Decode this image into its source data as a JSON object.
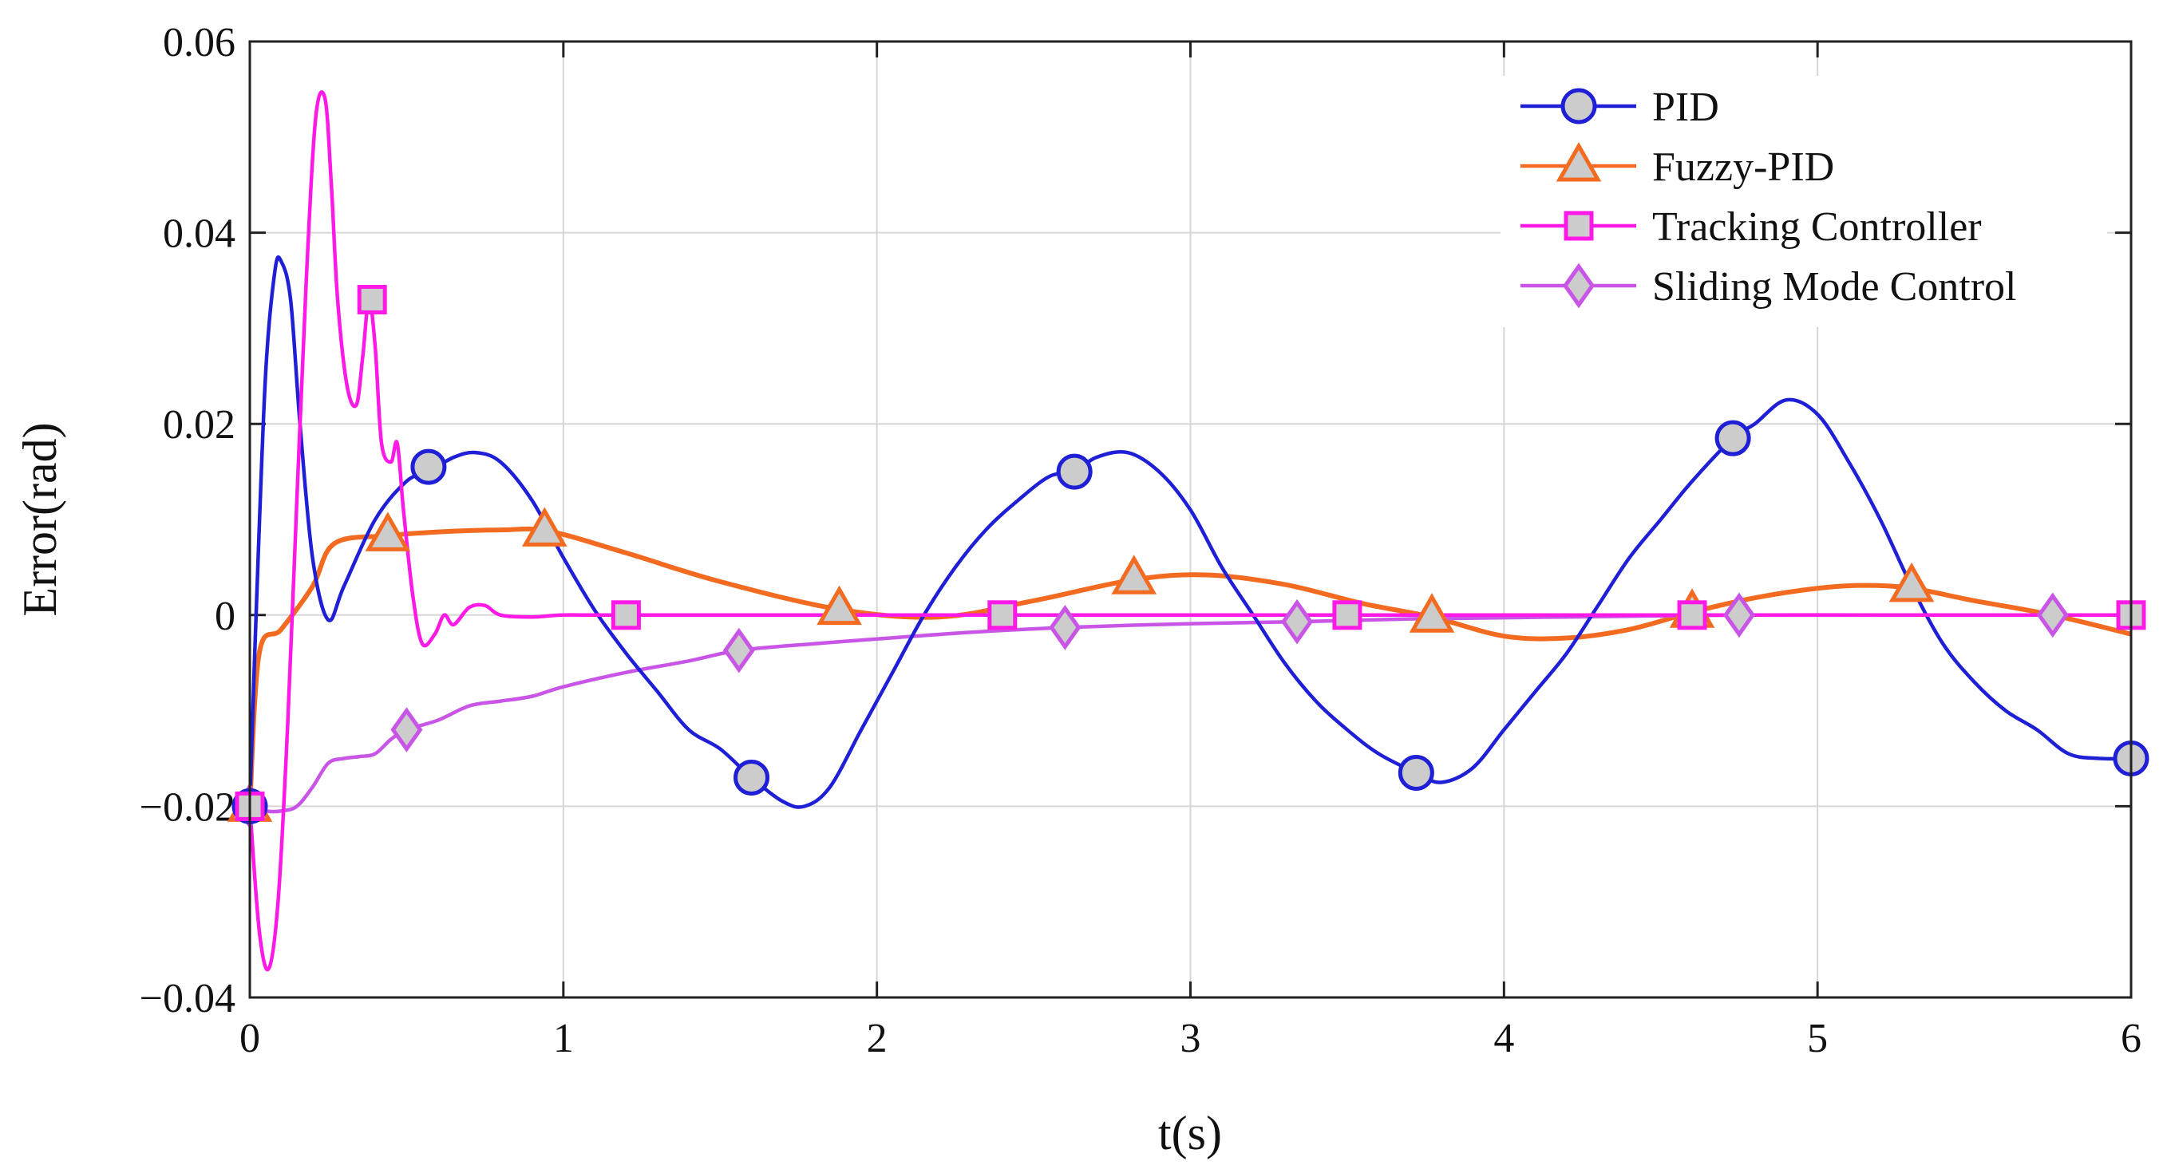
{
  "chart_data": {
    "type": "line",
    "title": "",
    "xlabel": "t(s)",
    "ylabel": "Error(rad)",
    "xlim": [
      0,
      6
    ],
    "ylim": [
      -0.04,
      0.06
    ],
    "xticks": [
      0,
      1,
      2,
      3,
      4,
      5,
      6
    ],
    "yticks": [
      -0.04,
      -0.02,
      0,
      0.02,
      0.04,
      0.06
    ],
    "xtick_labels": [
      "0",
      "1",
      "2",
      "3",
      "4",
      "5",
      "6"
    ],
    "ytick_labels": [
      "−0.04",
      "−0.02",
      "0",
      "0.02",
      "0.04",
      "0.06"
    ],
    "grid": true,
    "legend_position": "top-right",
    "series": [
      {
        "name": "PID",
        "color": "#1f1fd6",
        "marker": "circle",
        "x": [
          0,
          0.02,
          0.05,
          0.08,
          0.1,
          0.13,
          0.16,
          0.2,
          0.25,
          0.3,
          0.4,
          0.5,
          0.57,
          0.65,
          0.72,
          0.8,
          0.9,
          1.0,
          1.1,
          1.2,
          1.3,
          1.4,
          1.5,
          1.6,
          1.7,
          1.77,
          1.85,
          1.95,
          2.05,
          2.15,
          2.25,
          2.35,
          2.45,
          2.55,
          2.63,
          2.7,
          2.8,
          2.9,
          3.0,
          3.1,
          3.2,
          3.3,
          3.4,
          3.5,
          3.6,
          3.72,
          3.8,
          3.9,
          4.0,
          4.1,
          4.2,
          4.3,
          4.4,
          4.5,
          4.6,
          4.73,
          4.8,
          4.9,
          5.0,
          5.1,
          5.2,
          5.3,
          5.4,
          5.5,
          5.6,
          5.7,
          5.8,
          5.9,
          6.0
        ],
        "values": [
          -0.02,
          0.0,
          0.025,
          0.036,
          0.037,
          0.033,
          0.02,
          0.006,
          -0.0005,
          0.003,
          0.01,
          0.014,
          0.015,
          0.0165,
          0.017,
          0.016,
          0.012,
          0.006,
          0.0005,
          -0.004,
          -0.008,
          -0.012,
          -0.014,
          -0.017,
          -0.0195,
          -0.02,
          -0.018,
          -0.012,
          -0.006,
          0.0,
          0.005,
          0.009,
          0.012,
          0.0145,
          0.015,
          0.0165,
          0.017,
          0.015,
          0.011,
          0.005,
          0.0,
          -0.005,
          -0.009,
          -0.012,
          -0.0145,
          -0.0165,
          -0.0175,
          -0.016,
          -0.012,
          -0.008,
          -0.004,
          0.001,
          0.006,
          0.01,
          0.014,
          0.0185,
          0.02,
          0.0225,
          0.021,
          0.016,
          0.01,
          0.003,
          -0.003,
          -0.007,
          -0.01,
          -0.012,
          -0.0145,
          -0.015,
          -0.015
        ],
        "marker_x": [
          0,
          0.57,
          1.6,
          2.63,
          3.72,
          4.73,
          6.0
        ],
        "marker_values": [
          -0.02,
          0.0155,
          -0.017,
          0.015,
          -0.0165,
          0.0185,
          -0.015
        ]
      },
      {
        "name": "Fuzzy-PID",
        "color": "#f26b21",
        "marker": "triangle",
        "x": [
          0,
          0.03,
          0.1,
          0.2,
          0.27,
          0.44,
          0.6,
          0.8,
          0.95,
          1.2,
          1.5,
          1.88,
          2.2,
          2.5,
          2.82,
          3.05,
          3.3,
          3.55,
          3.77,
          4.0,
          4.2,
          4.4,
          4.6,
          4.8,
          5.0,
          5.15,
          5.3,
          5.5,
          5.75,
          6.0
        ],
        "values": [
          -0.02,
          -0.004,
          -0.0015,
          0.003,
          0.0075,
          0.0083,
          0.0087,
          0.0089,
          0.0088,
          0.0065,
          0.0035,
          0.0006,
          -0.0002,
          0.0015,
          0.0037,
          0.0042,
          0.0032,
          0.0012,
          -0.0002,
          -0.0022,
          -0.0024,
          -0.0015,
          0.0003,
          0.0018,
          0.0028,
          0.0031,
          0.0028,
          0.0015,
          0.0,
          -0.002
        ],
        "marker_x": [
          0,
          0.44,
          0.94,
          1.88,
          2.82,
          3.77,
          4.6,
          5.3
        ],
        "marker_values": [
          -0.02,
          0.0083,
          0.0088,
          0.0006,
          0.0038,
          -0.0002,
          0.0003,
          0.003
        ]
      },
      {
        "name": "Tracking Controller",
        "color": "#ff19e6",
        "marker": "square",
        "x": [
          0,
          0.03,
          0.06,
          0.09,
          0.12,
          0.15,
          0.18,
          0.21,
          0.24,
          0.26,
          0.28,
          0.31,
          0.34,
          0.36,
          0.38,
          0.4,
          0.42,
          0.45,
          0.47,
          0.49,
          0.52,
          0.55,
          0.59,
          0.62,
          0.65,
          0.7,
          0.75,
          0.8,
          0.9,
          1.0,
          1.2,
          2.4,
          3.5,
          4.6,
          6.0
        ],
        "values": [
          -0.02,
          -0.033,
          -0.037,
          -0.03,
          -0.012,
          0.012,
          0.035,
          0.052,
          0.054,
          0.045,
          0.033,
          0.024,
          0.022,
          0.027,
          0.033,
          0.028,
          0.018,
          0.016,
          0.018,
          0.011,
          0.002,
          -0.003,
          -0.002,
          0.0,
          -0.001,
          0.0008,
          0.001,
          0.0,
          -0.0002,
          0.0,
          0.0,
          0.0,
          0.0,
          0.0,
          0.0
        ],
        "marker_x": [
          0,
          0.39,
          1.2,
          2.4,
          3.5,
          4.6,
          6.0
        ],
        "marker_values": [
          -0.02,
          0.033,
          0.0,
          0.0,
          0.0,
          0.0,
          0.0
        ]
      },
      {
        "name": "Sliding Mode Control",
        "color": "#c955e6",
        "marker": "diamond",
        "x": [
          0,
          0.05,
          0.1,
          0.15,
          0.2,
          0.25,
          0.3,
          0.35,
          0.4,
          0.45,
          0.5,
          0.6,
          0.7,
          0.8,
          0.9,
          1.0,
          1.2,
          1.4,
          1.56,
          1.8,
          2.0,
          2.3,
          2.6,
          3.0,
          3.34,
          3.7,
          4.2,
          4.75,
          5.2,
          5.75,
          6.0
        ],
        "values": [
          -0.02,
          -0.0205,
          -0.0205,
          -0.02,
          -0.018,
          -0.0155,
          -0.015,
          -0.0148,
          -0.0145,
          -0.013,
          -0.012,
          -0.011,
          -0.0095,
          -0.009,
          -0.0085,
          -0.0075,
          -0.006,
          -0.0048,
          -0.0037,
          -0.003,
          -0.0025,
          -0.0018,
          -0.0013,
          -0.0009,
          -0.0007,
          -0.0004,
          -0.0002,
          0.0,
          0.0,
          0.0,
          0.0
        ],
        "marker_x": [
          0,
          0.5,
          1.56,
          2.6,
          3.34,
          4.75,
          5.75
        ],
        "marker_values": [
          -0.02,
          -0.012,
          -0.0037,
          -0.0013,
          -0.0007,
          0.0,
          0.0
        ]
      }
    ]
  }
}
